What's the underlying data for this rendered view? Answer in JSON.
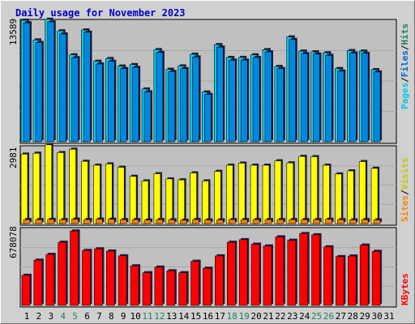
{
  "title": "Daily usage for November 2023",
  "colors": {
    "hits": "#00d0f0",
    "files": "#0088e0",
    "pages": "#00c8e8",
    "visits": "#ffff00",
    "sites": "#ff8000",
    "kbytes": "#ff0000",
    "weekend_label": "#208060",
    "weekday_label": "#000000",
    "title": "#0000cc"
  },
  "right_labels": {
    "pages": "Pages",
    "files": "Files",
    "hits": "Hits",
    "sites": "Sites",
    "visits": "Visits",
    "kbytes": "KBytes",
    "sep": "/"
  },
  "chart_data": {
    "type": "bar",
    "title": "Daily usage for November 2023",
    "categories": [
      "1",
      "2",
      "3",
      "4",
      "5",
      "6",
      "7",
      "8",
      "9",
      "10",
      "11",
      "12",
      "13",
      "14",
      "15",
      "16",
      "17",
      "18",
      "19",
      "20",
      "21",
      "22",
      "23",
      "24",
      "25",
      "26",
      "27",
      "28",
      "29",
      "30",
      "31"
    ],
    "weekend_days": [
      "4",
      "5",
      "11",
      "12",
      "18",
      "19",
      "25",
      "26"
    ],
    "panels": [
      {
        "id": "hits",
        "max_label": "13589",
        "ymax": 13589,
        "series": [
          {
            "name": "Hits",
            "values": [
              13589,
              11385,
              13700,
              12400,
              9720,
              12500,
              9000,
              9300,
              8460,
              8620,
              5900,
              10300,
              8100,
              8480,
              9780,
              5560,
              10860,
              9420,
              9430,
              9720,
              10300,
              8420,
              11720,
              10140,
              10060,
              9950,
              8180,
              10190,
              10140,
              8060,
              null
            ]
          },
          {
            "name": "Files",
            "values": [
              13300,
              11100,
              13400,
              12050,
              9400,
              12250,
              8700,
              9000,
              8180,
              8320,
              5580,
              9980,
              7850,
              8180,
              9480,
              5300,
              10580,
              9120,
              9130,
              9420,
              10050,
              8180,
              11430,
              9860,
              9800,
              9660,
              7900,
              9920,
              9880,
              7800,
              null
            ]
          }
        ]
      },
      {
        "id": "visits",
        "max_label": "2981",
        "ymax": 2981,
        "series": [
          {
            "name": "Visits",
            "values": [
              2690,
              2725,
              3050,
              2750,
              2880,
              2410,
              2260,
              2310,
              2180,
              1830,
              1650,
              1930,
              1730,
              1690,
              1960,
              1650,
              2020,
              2260,
              2340,
              2260,
              2260,
              2430,
              2350,
              2600,
              2590,
              2260,
              1920,
              2040,
              2400,
              2140,
              null
            ]
          },
          {
            "name": "Sites",
            "values": [
              150,
              150,
              160,
              150,
              170,
              155,
              170,
              165,
              150,
              150,
              135,
              155,
              145,
              130,
              155,
              140,
              140,
              150,
              155,
              150,
              150,
              150,
              150,
              150,
              150,
              165,
              150,
              140,
              150,
              140,
              null
            ]
          }
        ]
      },
      {
        "id": "kbytes",
        "max_label": "678078",
        "ymax": 678078,
        "series": [
          {
            "name": "KBytes",
            "values": [
              265000,
              398000,
              449000,
              556000,
              655000,
              484000,
              498000,
              478000,
              437000,
              348000,
              288000,
              337000,
              305000,
              288000,
              388000,
              327000,
              436000,
              556000,
              579000,
              539000,
              523000,
              604000,
              574000,
              633000,
              622000,
              515000,
              430000,
              435000,
              531000,
              476000,
              null
            ]
          }
        ]
      }
    ]
  }
}
